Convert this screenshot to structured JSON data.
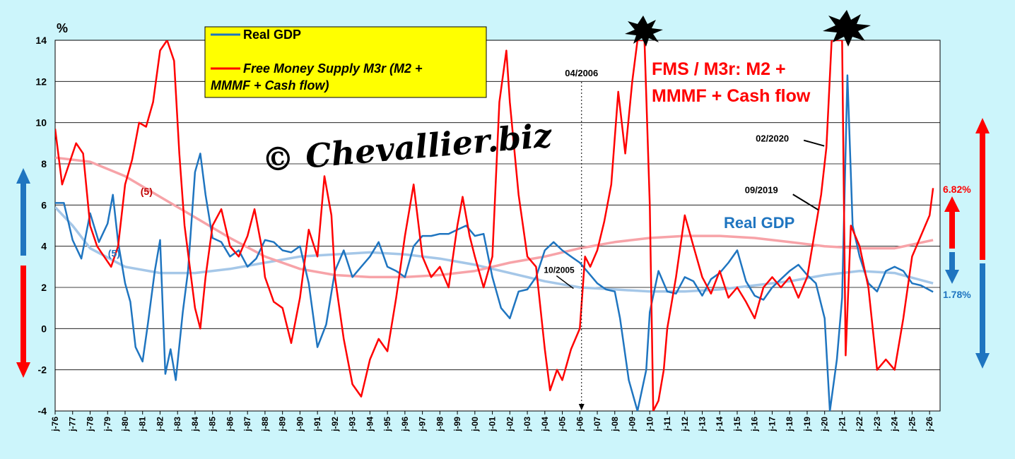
{
  "chart_data": {
    "type": "line",
    "unit_label": "%",
    "ylim": [
      -4,
      14
    ],
    "y_ticks": [
      "14",
      "12",
      "10",
      "8",
      "6",
      "4",
      "2",
      "0",
      "-2",
      "-4"
    ],
    "x_range": [
      1976,
      2026.6
    ],
    "x_ticks": [
      "j-76",
      "j-77",
      "j-78",
      "j-79",
      "j-80",
      "j-81",
      "j-82",
      "j-83",
      "j-84",
      "j-85",
      "j-86",
      "j-87",
      "j-88",
      "j-89",
      "j-90",
      "j-91",
      "j-92",
      "j-93",
      "j-94",
      "j-95",
      "j-96",
      "j-97",
      "j-98",
      "j-99",
      "j-00",
      "j-01",
      "j-02",
      "j-03",
      "j-04",
      "j-05",
      "j-06",
      "j-07",
      "j-08",
      "j-09",
      "j-10",
      "j-11",
      "j-12",
      "j-13",
      "j-14",
      "j-15",
      "j-16",
      "j-17",
      "j-18",
      "j-19",
      "j-20",
      "j-21",
      "j-22",
      "j-23",
      "j-24",
      "j-25",
      "j-26"
    ],
    "grid": "horizontal",
    "legend_position": "top-left",
    "series": [
      {
        "name": "Real GDP",
        "color": "#1f75c0",
        "points": [
          [
            1976,
            6.1
          ],
          [
            1976.5,
            6.1
          ],
          [
            1977,
            4.3
          ],
          [
            1977.5,
            3.4
          ],
          [
            1978,
            5.6
          ],
          [
            1978.5,
            4.2
          ],
          [
            1979,
            5.1
          ],
          [
            1979.3,
            6.5
          ],
          [
            1979.6,
            4.2
          ],
          [
            1980,
            2.2
          ],
          [
            1980.3,
            1.3
          ],
          [
            1980.6,
            -0.9
          ],
          [
            1981,
            -1.6
          ],
          [
            1981.3,
            0.2
          ],
          [
            1981.7,
            2.8
          ],
          [
            1982,
            4.3
          ],
          [
            1982.3,
            -2.2
          ],
          [
            1982.6,
            -1.0
          ],
          [
            1982.9,
            -2.5
          ],
          [
            1983.3,
            0.8
          ],
          [
            1983.6,
            2.8
          ],
          [
            1984,
            7.6
          ],
          [
            1984.3,
            8.5
          ],
          [
            1984.6,
            6.5
          ],
          [
            1985,
            4.4
          ],
          [
            1985.5,
            4.2
          ],
          [
            1986,
            3.5
          ],
          [
            1986.5,
            3.8
          ],
          [
            1987,
            3.0
          ],
          [
            1987.5,
            3.4
          ],
          [
            1988,
            4.3
          ],
          [
            1988.5,
            4.2
          ],
          [
            1989,
            3.8
          ],
          [
            1989.5,
            3.7
          ],
          [
            1990,
            4.0
          ],
          [
            1990.5,
            2.2
          ],
          [
            1991,
            -0.9
          ],
          [
            1991.5,
            0.2
          ],
          [
            1992,
            2.8
          ],
          [
            1992.5,
            3.8
          ],
          [
            1993,
            2.5
          ],
          [
            1993.5,
            3.0
          ],
          [
            1994,
            3.5
          ],
          [
            1994.5,
            4.2
          ],
          [
            1995,
            3.0
          ],
          [
            1995.5,
            2.8
          ],
          [
            1996,
            2.5
          ],
          [
            1996.5,
            4.0
          ],
          [
            1997,
            4.5
          ],
          [
            1997.5,
            4.5
          ],
          [
            1998,
            4.6
          ],
          [
            1998.5,
            4.6
          ],
          [
            1999,
            4.8
          ],
          [
            1999.5,
            5.0
          ],
          [
            2000,
            4.5
          ],
          [
            2000.5,
            4.6
          ],
          [
            2001,
            2.5
          ],
          [
            2001.5,
            1.0
          ],
          [
            2002,
            0.5
          ],
          [
            2002.5,
            1.8
          ],
          [
            2003,
            1.9
          ],
          [
            2003.5,
            2.5
          ],
          [
            2004,
            3.8
          ],
          [
            2004.5,
            4.2
          ],
          [
            2005,
            3.8
          ],
          [
            2005.5,
            3.5
          ],
          [
            2006,
            3.2
          ],
          [
            2006.5,
            2.7
          ],
          [
            2007,
            2.2
          ],
          [
            2007.5,
            1.9
          ],
          [
            2008,
            1.8
          ],
          [
            2008.3,
            0.5
          ],
          [
            2008.8,
            -2.5
          ],
          [
            2009.3,
            -4.0
          ],
          [
            2009.8,
            -2.0
          ],
          [
            2010,
            0.8
          ],
          [
            2010.5,
            2.8
          ],
          [
            2011,
            1.8
          ],
          [
            2011.5,
            1.7
          ],
          [
            2012,
            2.5
          ],
          [
            2012.5,
            2.3
          ],
          [
            2013,
            1.6
          ],
          [
            2013.5,
            2.4
          ],
          [
            2014,
            2.7
          ],
          [
            2014.5,
            3.2
          ],
          [
            2015,
            3.8
          ],
          [
            2015.5,
            2.3
          ],
          [
            2016,
            1.6
          ],
          [
            2016.5,
            1.4
          ],
          [
            2017,
            2.0
          ],
          [
            2017.5,
            2.4
          ],
          [
            2018,
            2.8
          ],
          [
            2018.5,
            3.1
          ],
          [
            2019,
            2.6
          ],
          [
            2019.5,
            2.2
          ],
          [
            2020,
            0.5
          ],
          [
            2020.3,
            -4.0
          ],
          [
            2020.7,
            -1.5
          ],
          [
            2021,
            1.5
          ],
          [
            2021.3,
            12.3
          ],
          [
            2021.6,
            5.0
          ],
          [
            2022,
            3.5
          ],
          [
            2022.5,
            2.2
          ],
          [
            2023,
            1.8
          ],
          [
            2023.5,
            2.8
          ],
          [
            2024,
            3.0
          ],
          [
            2024.5,
            2.8
          ],
          [
            2025,
            2.2
          ],
          [
            2025.5,
            2.1
          ],
          [
            2026.2,
            1.78
          ]
        ]
      },
      {
        "name": "Free Money Supply M3r (M2 + MMMF + Cash flow)",
        "color": "#ff0000",
        "points": [
          [
            1976,
            9.7
          ],
          [
            1976.4,
            7.0
          ],
          [
            1976.8,
            8.0
          ],
          [
            1977.2,
            9.0
          ],
          [
            1977.6,
            8.5
          ],
          [
            1978,
            5.0
          ],
          [
            1978.4,
            4.0
          ],
          [
            1978.8,
            3.5
          ],
          [
            1979.2,
            3.0
          ],
          [
            1979.6,
            4.0
          ],
          [
            1980,
            7.0
          ],
          [
            1980.4,
            8.2
          ],
          [
            1980.8,
            10.0
          ],
          [
            1981.2,
            9.8
          ],
          [
            1981.6,
            11.0
          ],
          [
            1982,
            13.5
          ],
          [
            1982.4,
            14.0
          ],
          [
            1982.8,
            13.0
          ],
          [
            1983.1,
            8.5
          ],
          [
            1983.4,
            5.0
          ],
          [
            1983.7,
            3.0
          ],
          [
            1984,
            1.0
          ],
          [
            1984.3,
            0.0
          ],
          [
            1984.6,
            2.5
          ],
          [
            1985,
            5.0
          ],
          [
            1985.5,
            5.8
          ],
          [
            1986,
            4.0
          ],
          [
            1986.5,
            3.5
          ],
          [
            1987,
            4.5
          ],
          [
            1987.4,
            5.8
          ],
          [
            1987.8,
            4.0
          ],
          [
            1988,
            2.5
          ],
          [
            1988.5,
            1.3
          ],
          [
            1989,
            1.0
          ],
          [
            1989.5,
            -0.7
          ],
          [
            1990,
            1.5
          ],
          [
            1990.5,
            4.8
          ],
          [
            1991,
            3.5
          ],
          [
            1991.4,
            7.4
          ],
          [
            1991.8,
            5.5
          ],
          [
            1992,
            2.5
          ],
          [
            1992.5,
            -0.5
          ],
          [
            1993,
            -2.7
          ],
          [
            1993.5,
            -3.3
          ],
          [
            1994,
            -1.5
          ],
          [
            1994.5,
            -0.5
          ],
          [
            1995,
            -1.1
          ],
          [
            1995.5,
            1.5
          ],
          [
            1996,
            4.5
          ],
          [
            1996.5,
            7.0
          ],
          [
            1997,
            3.5
          ],
          [
            1997.5,
            2.5
          ],
          [
            1998,
            3.0
          ],
          [
            1998.5,
            2.0
          ],
          [
            1999,
            5.0
          ],
          [
            1999.3,
            6.4
          ],
          [
            1999.7,
            4.5
          ],
          [
            2000,
            3.5
          ],
          [
            2000.5,
            2.0
          ],
          [
            2001,
            3.5
          ],
          [
            2001.4,
            11.0
          ],
          [
            2001.8,
            13.5
          ],
          [
            2002,
            11.0
          ],
          [
            2002.5,
            6.5
          ],
          [
            2003,
            3.5
          ],
          [
            2003.5,
            3.0
          ],
          [
            2004,
            -1.0
          ],
          [
            2004.3,
            -3.0
          ],
          [
            2004.7,
            -2.0
          ],
          [
            2005,
            -2.5
          ],
          [
            2005.5,
            -1.0
          ],
          [
            2006,
            0.0
          ],
          [
            2006.3,
            3.5
          ],
          [
            2006.6,
            3.0
          ],
          [
            2007,
            3.8
          ],
          [
            2007.4,
            5.2
          ],
          [
            2007.8,
            7.0
          ],
          [
            2008.2,
            11.5
          ],
          [
            2008.6,
            8.5
          ],
          [
            2009,
            12.0
          ],
          [
            2009.3,
            14.0
          ],
          [
            2009.7,
            14.0
          ],
          [
            2010,
            6.0
          ],
          [
            2010.2,
            -4.0
          ],
          [
            2010.5,
            -3.5
          ],
          [
            2010.8,
            -2.0
          ],
          [
            2011,
            0.0
          ],
          [
            2011.5,
            2.5
          ],
          [
            2012,
            5.5
          ],
          [
            2012.5,
            4.0
          ],
          [
            2013,
            2.5
          ],
          [
            2013.5,
            1.7
          ],
          [
            2014,
            2.8
          ],
          [
            2014.5,
            1.5
          ],
          [
            2015,
            2.0
          ],
          [
            2015.5,
            1.3
          ],
          [
            2016,
            0.5
          ],
          [
            2016.5,
            2.0
          ],
          [
            2017,
            2.5
          ],
          [
            2017.5,
            2.0
          ],
          [
            2018,
            2.5
          ],
          [
            2018.5,
            1.5
          ],
          [
            2019,
            2.5
          ],
          [
            2019.4,
            4.5
          ],
          [
            2019.8,
            6.5
          ],
          [
            2020.1,
            8.8
          ],
          [
            2020.4,
            14.0
          ],
          [
            2020.7,
            14.0
          ],
          [
            2021,
            14.0
          ],
          [
            2021.2,
            -1.3
          ],
          [
            2021.5,
            5.0
          ],
          [
            2022,
            4.0
          ],
          [
            2022.5,
            2.0
          ],
          [
            2023,
            -2.0
          ],
          [
            2023.5,
            -1.5
          ],
          [
            2024,
            -2.0
          ],
          [
            2024.5,
            0.5
          ],
          [
            2025,
            3.5
          ],
          [
            2025.5,
            4.5
          ],
          [
            2026,
            5.5
          ],
          [
            2026.2,
            6.82
          ]
        ]
      },
      {
        "name": "",
        "color": "#f7a3a8",
        "points": [
          [
            1976,
            8.3
          ],
          [
            1978,
            8.1
          ],
          [
            1980,
            7.4
          ],
          [
            1982,
            6.4
          ],
          [
            1984,
            5.4
          ],
          [
            1986,
            4.4
          ],
          [
            1988,
            3.5
          ],
          [
            1990,
            2.9
          ],
          [
            1992,
            2.6
          ],
          [
            1994,
            2.5
          ],
          [
            1996,
            2.5
          ],
          [
            1998,
            2.6
          ],
          [
            2000,
            2.8
          ],
          [
            2002,
            3.2
          ],
          [
            2004,
            3.5
          ],
          [
            2006,
            3.9
          ],
          [
            2008,
            4.2
          ],
          [
            2010,
            4.4
          ],
          [
            2012,
            4.5
          ],
          [
            2014,
            4.5
          ],
          [
            2016,
            4.4
          ],
          [
            2018,
            4.2
          ],
          [
            2020,
            4.0
          ],
          [
            2022,
            3.9
          ],
          [
            2024,
            3.9
          ],
          [
            2026.2,
            4.3
          ]
        ]
      },
      {
        "name": "",
        "color": "#a5c7e8",
        "points": [
          [
            1976,
            5.9
          ],
          [
            1977,
            5.0
          ],
          [
            1978,
            3.9
          ],
          [
            1980,
            3.0
          ],
          [
            1982,
            2.7
          ],
          [
            1984,
            2.7
          ],
          [
            1986,
            2.9
          ],
          [
            1988,
            3.2
          ],
          [
            1990,
            3.5
          ],
          [
            1992,
            3.6
          ],
          [
            1994,
            3.7
          ],
          [
            1996,
            3.6
          ],
          [
            1998,
            3.4
          ],
          [
            2000,
            3.1
          ],
          [
            2002,
            2.7
          ],
          [
            2004,
            2.3
          ],
          [
            2006,
            2.0
          ],
          [
            2008,
            1.9
          ],
          [
            2010,
            1.8
          ],
          [
            2012,
            1.8
          ],
          [
            2014,
            1.9
          ],
          [
            2016,
            2.1
          ],
          [
            2018,
            2.3
          ],
          [
            2020,
            2.6
          ],
          [
            2022,
            2.8
          ],
          [
            2024,
            2.7
          ],
          [
            2026.2,
            2.2
          ]
        ]
      }
    ],
    "annotations": [
      {
        "text": "04/2006",
        "x": 2006.1,
        "y": 12.1
      },
      {
        "text": "10/2005",
        "x": 2005.8,
        "y": 2.7
      },
      {
        "text": "02/2020",
        "x": 2020.1,
        "y": 8.8
      },
      {
        "text": "09/2019",
        "x": 2019.8,
        "y": 5.9
      },
      {
        "text": "(5)",
        "series": "red_trend",
        "x": 1980.8,
        "y": 6.5
      },
      {
        "text": "(5)",
        "series": "blue_trend",
        "x": 1976.8,
        "y": 3.5
      }
    ],
    "legend": {
      "gdp_label": "Real GDP",
      "fms_label_line1": "Free Money Supply M3r (M2 +",
      "fms_label_line2": "MMMF + Cash flow)"
    },
    "fms_title_line1": "FMS / M3r: M2 +",
    "fms_title_line2": "MMMF + Cash flow",
    "gdp_title": "Real GDP",
    "last_fms_value": "6.82%",
    "last_gdp_value": "1.78%",
    "watermark": "© Chevallier.biz"
  }
}
